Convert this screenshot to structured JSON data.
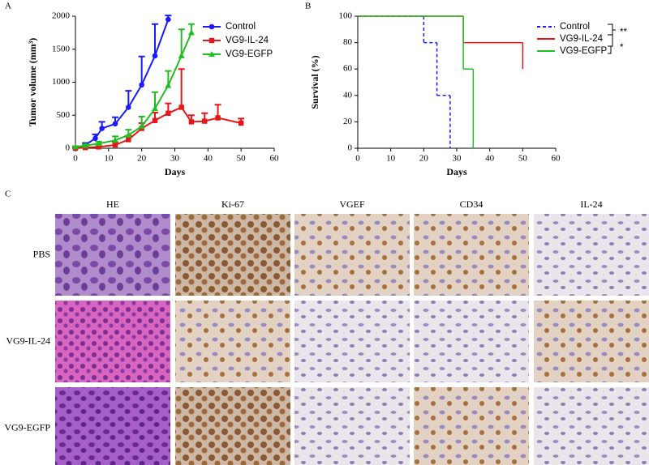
{
  "panel_labels": [
    "A",
    "B",
    "C"
  ],
  "chart_data": [
    {
      "type": "line",
      "xlabel": "Days",
      "ylabel": "Tumor volume (mm³)",
      "xlim": [
        0,
        60
      ],
      "xticks": [
        0,
        10,
        20,
        30,
        40,
        50,
        60
      ],
      "ylim": [
        0,
        2000
      ],
      "yticks": [
        0,
        500,
        1000,
        1500,
        2000
      ],
      "series": [
        {
          "name": "Control",
          "color": "#1a1aff",
          "marker": "circle",
          "x": [
            0,
            3,
            6,
            8,
            12,
            16,
            20,
            24,
            28
          ],
          "values": [
            0,
            50,
            150,
            300,
            370,
            620,
            960,
            1400,
            1950
          ],
          "errors": [
            20,
            30,
            60,
            100,
            100,
            250,
            430,
            480,
            60
          ]
        },
        {
          "name": "VG9-IL-24",
          "color": "#e8161b",
          "marker": "square",
          "x": [
            0,
            3,
            7,
            12,
            16,
            20,
            24,
            28,
            32,
            35,
            39,
            43,
            50
          ],
          "values": [
            0,
            10,
            20,
            50,
            130,
            300,
            420,
            530,
            620,
            400,
            410,
            460,
            380
          ],
          "errors": [
            10,
            20,
            30,
            40,
            60,
            80,
            120,
            150,
            580,
            100,
            120,
            200,
            70
          ]
        },
        {
          "name": "VG9-EGFP",
          "color": "#1fbf1f",
          "marker": "triangle",
          "x": [
            0,
            3,
            7,
            12,
            16,
            20,
            24,
            28,
            32,
            35
          ],
          "values": [
            20,
            40,
            70,
            120,
            200,
            330,
            600,
            950,
            1400,
            1750
          ],
          "errors": [
            10,
            20,
            30,
            60,
            80,
            150,
            250,
            220,
            400,
            130
          ]
        }
      ]
    },
    {
      "type": "step",
      "xlabel": "Days",
      "ylabel": "Survival (%)",
      "xlim": [
        0,
        60
      ],
      "xticks": [
        0,
        10,
        20,
        30,
        40,
        50,
        60
      ],
      "ylim": [
        0,
        100
      ],
      "yticks": [
        0,
        20,
        40,
        60,
        80,
        100
      ],
      "series": [
        {
          "name": "Control",
          "color": "#1a1aff",
          "dashed": true,
          "x": [
            0,
            20,
            24,
            28
          ],
          "values": [
            100,
            80,
            40,
            0
          ]
        },
        {
          "name": "VG9-IL-24",
          "color": "#e8161b",
          "dashed": false,
          "x": [
            0,
            32,
            50
          ],
          "values": [
            100,
            80,
            60
          ]
        },
        {
          "name": "VG9-EGFP",
          "color": "#1fbf1f",
          "dashed": false,
          "x": [
            0,
            32,
            35
          ],
          "values": [
            100,
            60,
            0
          ]
        }
      ],
      "annotations": [
        "**",
        "*"
      ]
    }
  ],
  "image_grid": {
    "columns": [
      "HE",
      "Ki-67",
      "VGEF",
      "CD34",
      "IL-24"
    ],
    "rows": [
      "PBS",
      "VG9-IL-24",
      "VG9-EGFP"
    ]
  }
}
